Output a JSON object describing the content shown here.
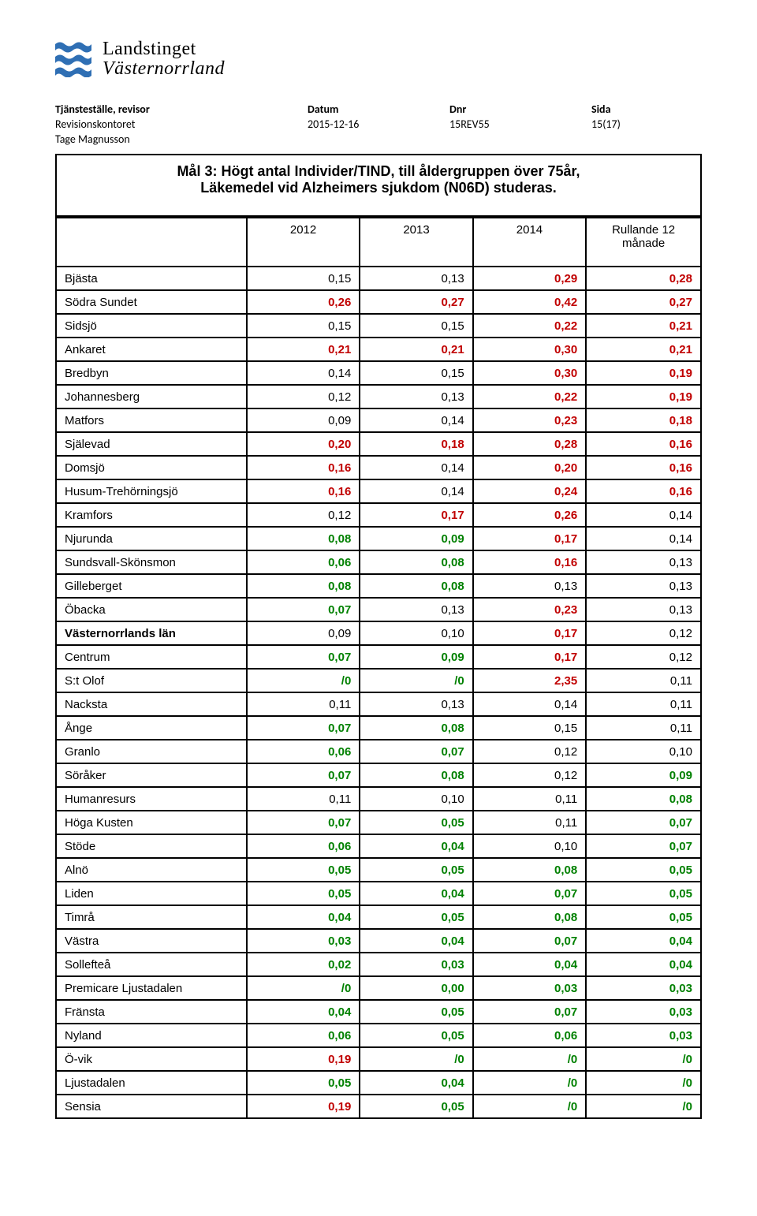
{
  "logo": {
    "top": "Landstinget",
    "bottom": "Västernorrland",
    "wave_colors": [
      "#2f6fb4",
      "#2f6fb4",
      "#2f6fb4"
    ]
  },
  "meta": {
    "headers": [
      "Tjänsteställe, revisor",
      "Datum",
      "Dnr",
      "Sida"
    ],
    "row1": [
      "Revisionskontoret",
      "2015-12-16",
      "15REV55",
      "15(17)"
    ],
    "row2": [
      "Tage Magnusson",
      "",
      "",
      ""
    ]
  },
  "title": {
    "line1": "Mål 3: Högt antal Individer/TIND, till åldergruppen över 75år,",
    "line2": "Läkemedel vid Alzheimers sjukdom (N06D) studeras."
  },
  "table": {
    "columns": [
      "",
      "2012",
      "2013",
      "2014",
      "Rullande 12 månade"
    ],
    "color_black": "#000000",
    "color_green": "#008000",
    "color_red": "#c00000",
    "rows": [
      {
        "label": "Bjästa",
        "bold": false,
        "cells": [
          {
            "v": "0,15",
            "c": "black"
          },
          {
            "v": "0,13",
            "c": "black"
          },
          {
            "v": "0,29",
            "c": "red"
          },
          {
            "v": "0,28",
            "c": "red"
          }
        ]
      },
      {
        "label": "Södra Sundet",
        "bold": false,
        "cells": [
          {
            "v": "0,26",
            "c": "red"
          },
          {
            "v": "0,27",
            "c": "red"
          },
          {
            "v": "0,42",
            "c": "red"
          },
          {
            "v": "0,27",
            "c": "red"
          }
        ]
      },
      {
        "label": "Sidsjö",
        "bold": false,
        "cells": [
          {
            "v": "0,15",
            "c": "black"
          },
          {
            "v": "0,15",
            "c": "black"
          },
          {
            "v": "0,22",
            "c": "red"
          },
          {
            "v": "0,21",
            "c": "red"
          }
        ]
      },
      {
        "label": "Ankaret",
        "bold": false,
        "cells": [
          {
            "v": "0,21",
            "c": "red"
          },
          {
            "v": "0,21",
            "c": "red"
          },
          {
            "v": "0,30",
            "c": "red"
          },
          {
            "v": "0,21",
            "c": "red"
          }
        ]
      },
      {
        "label": "Bredbyn",
        "bold": false,
        "cells": [
          {
            "v": "0,14",
            "c": "black"
          },
          {
            "v": "0,15",
            "c": "black"
          },
          {
            "v": "0,30",
            "c": "red"
          },
          {
            "v": "0,19",
            "c": "red"
          }
        ]
      },
      {
        "label": "Johannesberg",
        "bold": false,
        "cells": [
          {
            "v": "0,12",
            "c": "black"
          },
          {
            "v": "0,13",
            "c": "black"
          },
          {
            "v": "0,22",
            "c": "red"
          },
          {
            "v": "0,19",
            "c": "red"
          }
        ]
      },
      {
        "label": "Matfors",
        "bold": false,
        "cells": [
          {
            "v": "0,09",
            "c": "black"
          },
          {
            "v": "0,14",
            "c": "black"
          },
          {
            "v": "0,23",
            "c": "red"
          },
          {
            "v": "0,18",
            "c": "red"
          }
        ]
      },
      {
        "label": "Själevad",
        "bold": false,
        "cells": [
          {
            "v": "0,20",
            "c": "red"
          },
          {
            "v": "0,18",
            "c": "red"
          },
          {
            "v": "0,28",
            "c": "red"
          },
          {
            "v": "0,16",
            "c": "red"
          }
        ]
      },
      {
        "label": "Domsjö",
        "bold": false,
        "cells": [
          {
            "v": "0,16",
            "c": "red"
          },
          {
            "v": "0,14",
            "c": "black"
          },
          {
            "v": "0,20",
            "c": "red"
          },
          {
            "v": "0,16",
            "c": "red"
          }
        ]
      },
      {
        "label": "Husum-Trehörningsjö",
        "bold": false,
        "cells": [
          {
            "v": "0,16",
            "c": "red"
          },
          {
            "v": "0,14",
            "c": "black"
          },
          {
            "v": "0,24",
            "c": "red"
          },
          {
            "v": "0,16",
            "c": "red"
          }
        ]
      },
      {
        "label": "Kramfors",
        "bold": false,
        "cells": [
          {
            "v": "0,12",
            "c": "black"
          },
          {
            "v": "0,17",
            "c": "red"
          },
          {
            "v": "0,26",
            "c": "red"
          },
          {
            "v": "0,14",
            "c": "black"
          }
        ]
      },
      {
        "label": "Njurunda",
        "bold": false,
        "cells": [
          {
            "v": "0,08",
            "c": "green"
          },
          {
            "v": "0,09",
            "c": "green"
          },
          {
            "v": "0,17",
            "c": "red"
          },
          {
            "v": "0,14",
            "c": "black"
          }
        ]
      },
      {
        "label": "Sundsvall-Skönsmon",
        "bold": false,
        "cells": [
          {
            "v": "0,06",
            "c": "green"
          },
          {
            "v": "0,08",
            "c": "green"
          },
          {
            "v": "0,16",
            "c": "red"
          },
          {
            "v": "0,13",
            "c": "black"
          }
        ]
      },
      {
        "label": "Gilleberget",
        "bold": false,
        "cells": [
          {
            "v": "0,08",
            "c": "green"
          },
          {
            "v": "0,08",
            "c": "green"
          },
          {
            "v": "0,13",
            "c": "black"
          },
          {
            "v": "0,13",
            "c": "black"
          }
        ]
      },
      {
        "label": "Öbacka",
        "bold": false,
        "cells": [
          {
            "v": "0,07",
            "c": "green"
          },
          {
            "v": "0,13",
            "c": "black"
          },
          {
            "v": "0,23",
            "c": "red"
          },
          {
            "v": "0,13",
            "c": "black"
          }
        ]
      },
      {
        "label": "Västernorrlands län",
        "bold": true,
        "cells": [
          {
            "v": "0,09",
            "c": "black"
          },
          {
            "v": "0,10",
            "c": "black"
          },
          {
            "v": "0,17",
            "c": "red"
          },
          {
            "v": "0,12",
            "c": "black"
          }
        ]
      },
      {
        "label": "Centrum",
        "bold": false,
        "cells": [
          {
            "v": "0,07",
            "c": "green"
          },
          {
            "v": "0,09",
            "c": "green"
          },
          {
            "v": "0,17",
            "c": "red"
          },
          {
            "v": "0,12",
            "c": "black"
          }
        ]
      },
      {
        "label": "S:t Olof",
        "bold": false,
        "cells": [
          {
            "v": "/0",
            "c": "green"
          },
          {
            "v": "/0",
            "c": "green"
          },
          {
            "v": "2,35",
            "c": "red"
          },
          {
            "v": "0,11",
            "c": "black"
          }
        ]
      },
      {
        "label": "Nacksta",
        "bold": false,
        "cells": [
          {
            "v": "0,11",
            "c": "black"
          },
          {
            "v": "0,13",
            "c": "black"
          },
          {
            "v": "0,14",
            "c": "black"
          },
          {
            "v": "0,11",
            "c": "black"
          }
        ]
      },
      {
        "label": "Ånge",
        "bold": false,
        "cells": [
          {
            "v": "0,07",
            "c": "green"
          },
          {
            "v": "0,08",
            "c": "green"
          },
          {
            "v": "0,15",
            "c": "black"
          },
          {
            "v": "0,11",
            "c": "black"
          }
        ]
      },
      {
        "label": "Granlo",
        "bold": false,
        "cells": [
          {
            "v": "0,06",
            "c": "green"
          },
          {
            "v": "0,07",
            "c": "green"
          },
          {
            "v": "0,12",
            "c": "black"
          },
          {
            "v": "0,10",
            "c": "black"
          }
        ]
      },
      {
        "label": "Söråker",
        "bold": false,
        "cells": [
          {
            "v": "0,07",
            "c": "green"
          },
          {
            "v": "0,08",
            "c": "green"
          },
          {
            "v": "0,12",
            "c": "black"
          },
          {
            "v": "0,09",
            "c": "green"
          }
        ]
      },
      {
        "label": "Humanresurs",
        "bold": false,
        "cells": [
          {
            "v": "0,11",
            "c": "black"
          },
          {
            "v": "0,10",
            "c": "black"
          },
          {
            "v": "0,11",
            "c": "black"
          },
          {
            "v": "0,08",
            "c": "green"
          }
        ]
      },
      {
        "label": "Höga Kusten",
        "bold": false,
        "cells": [
          {
            "v": "0,07",
            "c": "green"
          },
          {
            "v": "0,05",
            "c": "green"
          },
          {
            "v": "0,11",
            "c": "black"
          },
          {
            "v": "0,07",
            "c": "green"
          }
        ]
      },
      {
        "label": "Stöde",
        "bold": false,
        "cells": [
          {
            "v": "0,06",
            "c": "green"
          },
          {
            "v": "0,04",
            "c": "green"
          },
          {
            "v": "0,10",
            "c": "black"
          },
          {
            "v": "0,07",
            "c": "green"
          }
        ]
      },
      {
        "label": "Alnö",
        "bold": false,
        "cells": [
          {
            "v": "0,05",
            "c": "green"
          },
          {
            "v": "0,05",
            "c": "green"
          },
          {
            "v": "0,08",
            "c": "green"
          },
          {
            "v": "0,05",
            "c": "green"
          }
        ]
      },
      {
        "label": "Liden",
        "bold": false,
        "cells": [
          {
            "v": "0,05",
            "c": "green"
          },
          {
            "v": "0,04",
            "c": "green"
          },
          {
            "v": "0,07",
            "c": "green"
          },
          {
            "v": "0,05",
            "c": "green"
          }
        ]
      },
      {
        "label": "Timrå",
        "bold": false,
        "cells": [
          {
            "v": "0,04",
            "c": "green"
          },
          {
            "v": "0,05",
            "c": "green"
          },
          {
            "v": "0,08",
            "c": "green"
          },
          {
            "v": "0,05",
            "c": "green"
          }
        ]
      },
      {
        "label": "Västra",
        "bold": false,
        "cells": [
          {
            "v": "0,03",
            "c": "green"
          },
          {
            "v": "0,04",
            "c": "green"
          },
          {
            "v": "0,07",
            "c": "green"
          },
          {
            "v": "0,04",
            "c": "green"
          }
        ]
      },
      {
        "label": "Sollefteå",
        "bold": false,
        "cells": [
          {
            "v": "0,02",
            "c": "green"
          },
          {
            "v": "0,03",
            "c": "green"
          },
          {
            "v": "0,04",
            "c": "green"
          },
          {
            "v": "0,04",
            "c": "green"
          }
        ]
      },
      {
        "label": "Premicare Ljustadalen",
        "bold": false,
        "cells": [
          {
            "v": "/0",
            "c": "green"
          },
          {
            "v": "0,00",
            "c": "green"
          },
          {
            "v": "0,03",
            "c": "green"
          },
          {
            "v": "0,03",
            "c": "green"
          }
        ]
      },
      {
        "label": "Fränsta",
        "bold": false,
        "cells": [
          {
            "v": "0,04",
            "c": "green"
          },
          {
            "v": "0,05",
            "c": "green"
          },
          {
            "v": "0,07",
            "c": "green"
          },
          {
            "v": "0,03",
            "c": "green"
          }
        ]
      },
      {
        "label": "Nyland",
        "bold": false,
        "cells": [
          {
            "v": "0,06",
            "c": "green"
          },
          {
            "v": "0,05",
            "c": "green"
          },
          {
            "v": "0,06",
            "c": "green"
          },
          {
            "v": "0,03",
            "c": "green"
          }
        ]
      },
      {
        "label": "Ö-vik",
        "bold": false,
        "cells": [
          {
            "v": "0,19",
            "c": "red"
          },
          {
            "v": "/0",
            "c": "green"
          },
          {
            "v": "/0",
            "c": "green"
          },
          {
            "v": "/0",
            "c": "green"
          }
        ]
      },
      {
        "label": "Ljustadalen",
        "bold": false,
        "cells": [
          {
            "v": "0,05",
            "c": "green"
          },
          {
            "v": "0,04",
            "c": "green"
          },
          {
            "v": "/0",
            "c": "green"
          },
          {
            "v": "/0",
            "c": "green"
          }
        ]
      },
      {
        "label": "Sensia",
        "bold": false,
        "cells": [
          {
            "v": "0,19",
            "c": "red"
          },
          {
            "v": "0,05",
            "c": "green"
          },
          {
            "v": "/0",
            "c": "green"
          },
          {
            "v": "/0",
            "c": "green"
          }
        ]
      }
    ]
  }
}
